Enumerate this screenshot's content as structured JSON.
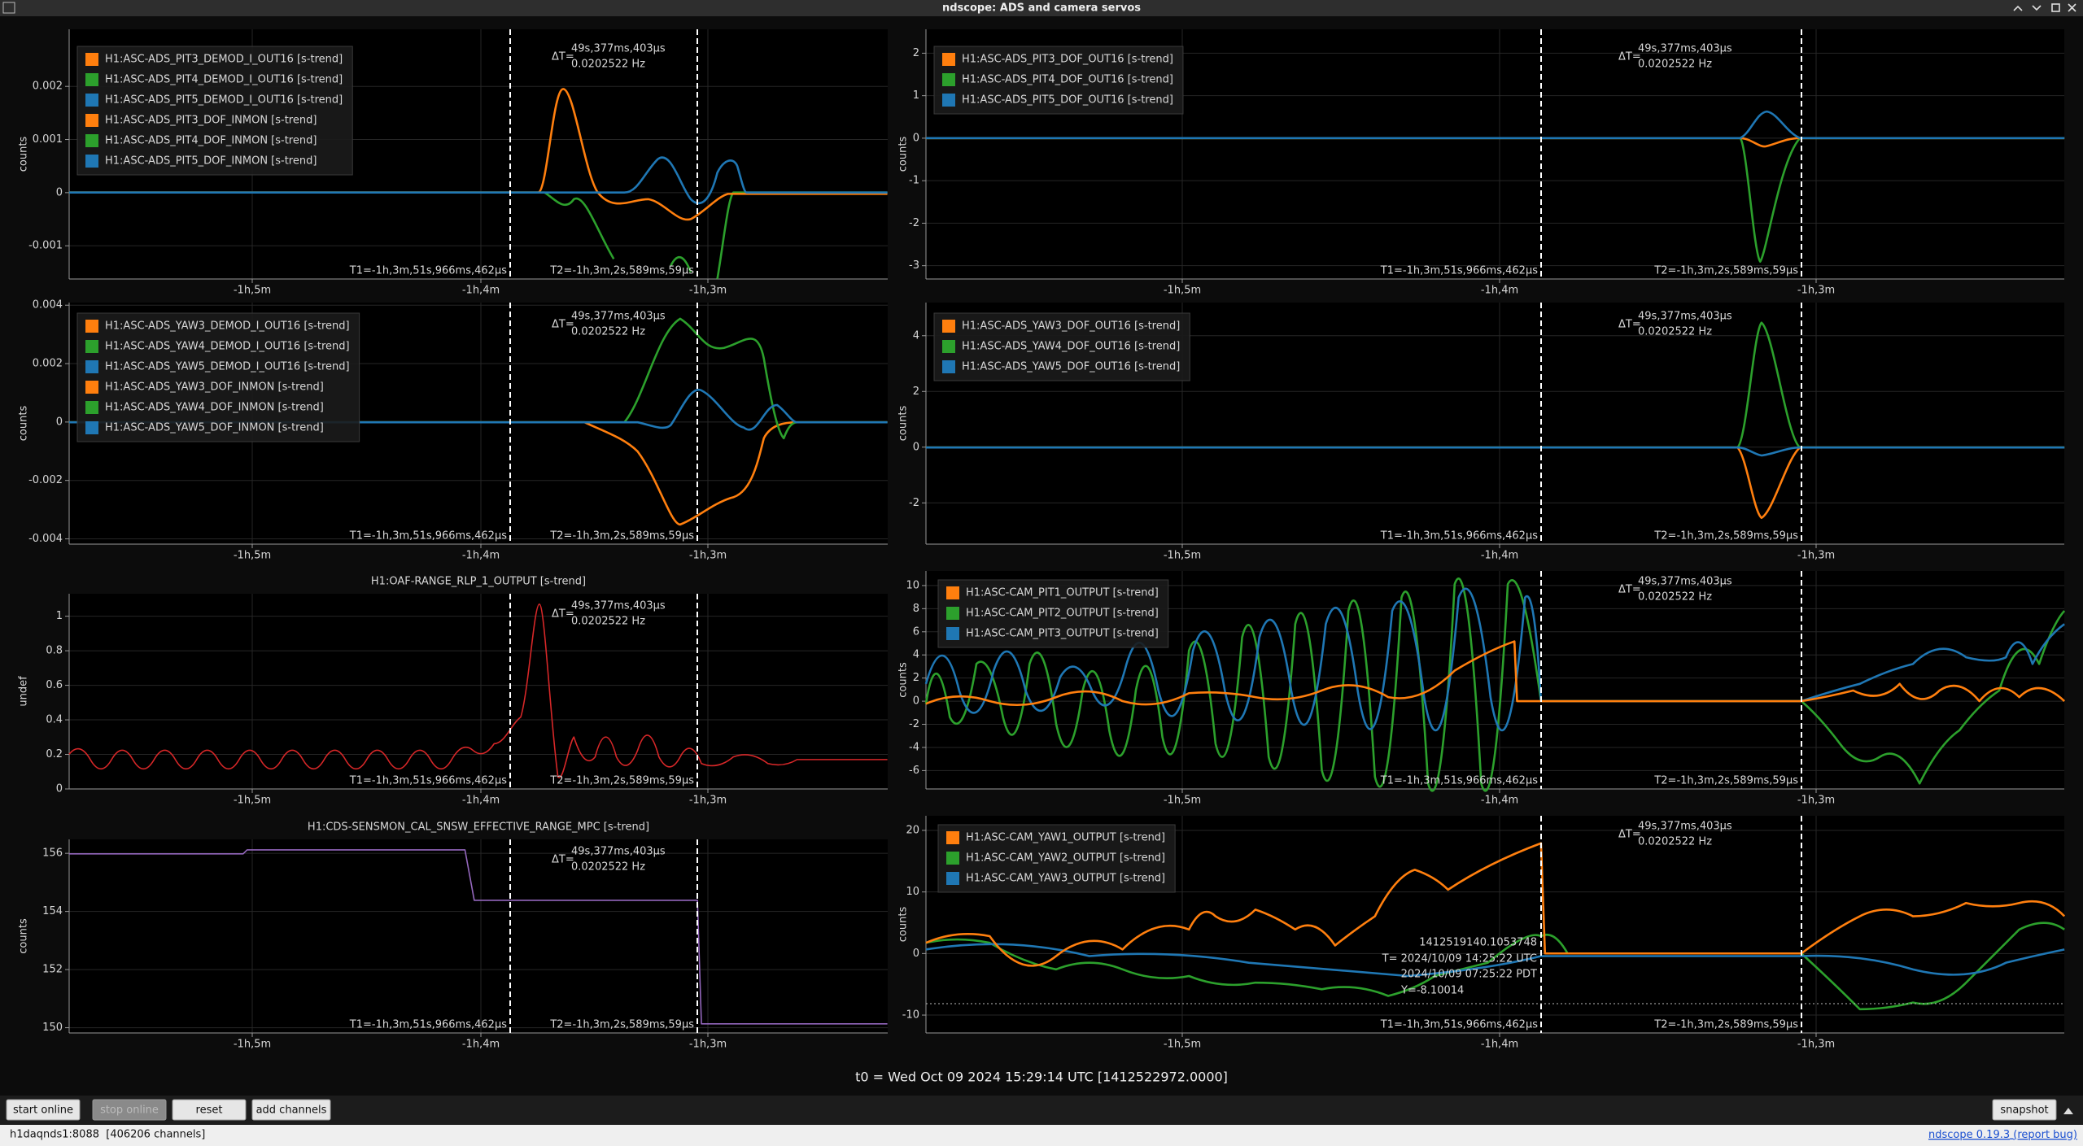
{
  "window": {
    "title": "ndscope: ADS and camera servos"
  },
  "cursors": {
    "t1": "T1=-1h,3m,51s,966ms,462µs",
    "t2": "T2=-1h,3m,2s,589ms,59µs",
    "delta_label": "ΔT=",
    "delta_t": "49s,377ms,403µs",
    "delta_f": "0.0202522 Hz"
  },
  "xticks": [
    "-1h,5m",
    "-1h,4m",
    "-1h,3m"
  ],
  "plots": [
    {
      "ylabel": "counts",
      "ylim": [
        -0.001625,
        0.003075
      ],
      "yticks": [
        -0.001,
        0,
        0.001,
        0.002
      ],
      "legend": [
        {
          "name": "H1:ASC-ADS_PIT3_DEMOD_I_OUT16 [s-trend]",
          "color": "#ff7f0e"
        },
        {
          "name": "H1:ASC-ADS_PIT4_DEMOD_I_OUT16 [s-trend]",
          "color": "#2ca02c"
        },
        {
          "name": "H1:ASC-ADS_PIT5_DEMOD_I_OUT16 [s-trend]",
          "color": "#1f77b4"
        },
        {
          "name": "H1:ASC-ADS_PIT3_DOF_INMON [s-trend]",
          "color": "#ff7f0e"
        },
        {
          "name": "H1:ASC-ADS_PIT4_DOF_INMON [s-trend]",
          "color": "#2ca02c"
        },
        {
          "name": "H1:ASC-ADS_PIT5_DOF_INMON [s-trend]",
          "color": "#1f77b4"
        }
      ]
    },
    {
      "ylabel": "counts",
      "ylim": [
        -3.3125,
        2.5625
      ],
      "yticks": [
        -3,
        -2,
        -1,
        0,
        1,
        2
      ],
      "legend": [
        {
          "name": "H1:ASC-ADS_PIT3_DOF_OUT16 [s-trend]",
          "color": "#ff7f0e"
        },
        {
          "name": "H1:ASC-ADS_PIT4_DOF_OUT16 [s-trend]",
          "color": "#2ca02c"
        },
        {
          "name": "H1:ASC-ADS_PIT5_DOF_OUT16 [s-trend]",
          "color": "#1f77b4"
        }
      ]
    },
    {
      "ylabel": "counts",
      "ylim": [
        -0.00418,
        0.00409
      ],
      "yticks": [
        -0.004,
        -0.002,
        0,
        0.002,
        0.004
      ],
      "legend": [
        {
          "name": "H1:ASC-ADS_YAW3_DEMOD_I_OUT16 [s-trend]",
          "color": "#ff7f0e"
        },
        {
          "name": "H1:ASC-ADS_YAW4_DEMOD_I_OUT16 [s-trend]",
          "color": "#2ca02c"
        },
        {
          "name": "H1:ASC-ADS_YAW5_DEMOD_I_OUT16 [s-trend]",
          "color": "#1f77b4"
        },
        {
          "name": "H1:ASC-ADS_YAW3_DOF_INMON [s-trend]",
          "color": "#ff7f0e"
        },
        {
          "name": "H1:ASC-ADS_YAW4_DOF_INMON [s-trend]",
          "color": "#2ca02c"
        },
        {
          "name": "H1:ASC-ADS_YAW5_DOF_INMON [s-trend]",
          "color": "#1f77b4"
        }
      ]
    },
    {
      "ylabel": "counts",
      "ylim": [
        -3.48,
        5.19
      ],
      "yticks": [
        -2,
        0,
        2,
        4
      ],
      "legend": [
        {
          "name": "H1:ASC-ADS_YAW3_DOF_OUT16 [s-trend]",
          "color": "#ff7f0e"
        },
        {
          "name": "H1:ASC-ADS_YAW4_DOF_OUT16 [s-trend]",
          "color": "#2ca02c"
        },
        {
          "name": "H1:ASC-ADS_YAW5_DOF_OUT16 [s-trend]",
          "color": "#1f77b4"
        }
      ]
    },
    {
      "title": "H1:OAF-RANGE_RLP_1_OUTPUT [s-trend]",
      "ylabel": "undef",
      "ylim": [
        0,
        1.13
      ],
      "yticks": [
        0,
        0.2,
        0.4,
        0.6,
        0.8,
        1
      ],
      "trace_color": "#d62728"
    },
    {
      "ylabel": "counts",
      "ylim": [
        -7.59,
        11.26
      ],
      "yticks": [
        -6,
        -4,
        -2,
        0,
        2,
        4,
        6,
        8,
        10
      ],
      "legend": [
        {
          "name": "H1:ASC-CAM_PIT1_OUTPUT [s-trend]",
          "color": "#ff7f0e"
        },
        {
          "name": "H1:ASC-CAM_PIT2_OUTPUT [s-trend]",
          "color": "#2ca02c"
        },
        {
          "name": "H1:ASC-CAM_PIT3_OUTPUT [s-trend]",
          "color": "#1f77b4"
        }
      ]
    },
    {
      "title": "H1:CDS-SENSMON_CAL_SNSW_EFFECTIVE_RANGE_MPC [s-trend]",
      "ylabel": "counts",
      "ylim": [
        149.82,
        156.48
      ],
      "yticks": [
        150,
        152,
        154,
        156
      ],
      "trace_color": "#9467bd"
    },
    {
      "ylabel": "counts",
      "ylim": [
        -12.9,
        22.37
      ],
      "yticks": [
        -10,
        0,
        10,
        20
      ],
      "legend": [
        {
          "name": "H1:ASC-CAM_YAW1_OUTPUT [s-trend]",
          "color": "#ff7f0e"
        },
        {
          "name": "H1:ASC-CAM_YAW2_OUTPUT [s-trend]",
          "color": "#2ca02c"
        },
        {
          "name": "H1:ASC-CAM_YAW3_OUTPUT [s-trend]",
          "color": "#1f77b4"
        }
      ]
    }
  ],
  "crosshair": {
    "lines": [
      "1412519140.1053748",
      "T= 2024/10/09 14:25:22 UTC",
      "2024/10/09 07:25:22 PDT",
      "Y=-8.10014"
    ]
  },
  "t0": "t0 = Wed Oct 09 2024 15:29:14 UTC [1412522972.0000]",
  "buttons": [
    "start online",
    "stop online",
    "reset",
    "add channels"
  ],
  "snapshot": "snapshot",
  "status": {
    "server": "h1daqnds1:8088  [406206 channels]",
    "version": "ndscope 0.19.3",
    "report": "(report bug)"
  }
}
